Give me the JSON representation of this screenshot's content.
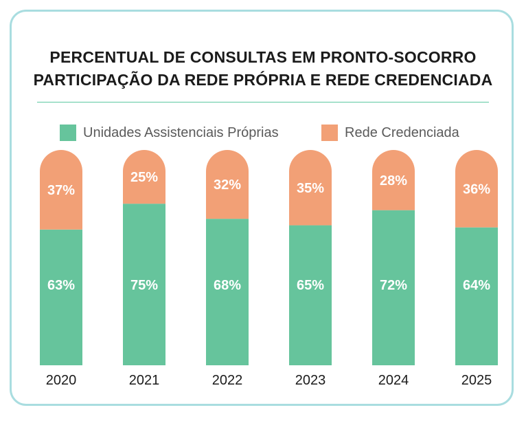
{
  "chart_data": {
    "type": "bar",
    "stacked": true,
    "title": "PERCENTUAL DE CONSULTAS EM PRONTO-SOCORRO",
    "subtitle": "PARTICIPAÇÃO DA REDE PRÓPRIA E REDE CREDENCIADA",
    "categories": [
      "2020",
      "2021",
      "2022",
      "2023",
      "2024",
      "2025"
    ],
    "series": [
      {
        "name": "Unidades Assistenciais Próprias",
        "values": [
          63,
          75,
          68,
          65,
          72,
          64
        ],
        "labels": [
          "63%",
          "75%",
          "68%",
          "65%",
          "72%",
          "64%"
        ],
        "color": "#66c49c"
      },
      {
        "name": "Rede Credenciada",
        "values": [
          37,
          25,
          32,
          35,
          28,
          36
        ],
        "labels": [
          "37%",
          "25%",
          "32%",
          "35%",
          "28%",
          "36%"
        ],
        "color": "#f2a076"
      }
    ],
    "ylim": [
      0,
      100
    ],
    "legend_position": "top",
    "grid": false,
    "bar_shape": "rounded-top"
  }
}
